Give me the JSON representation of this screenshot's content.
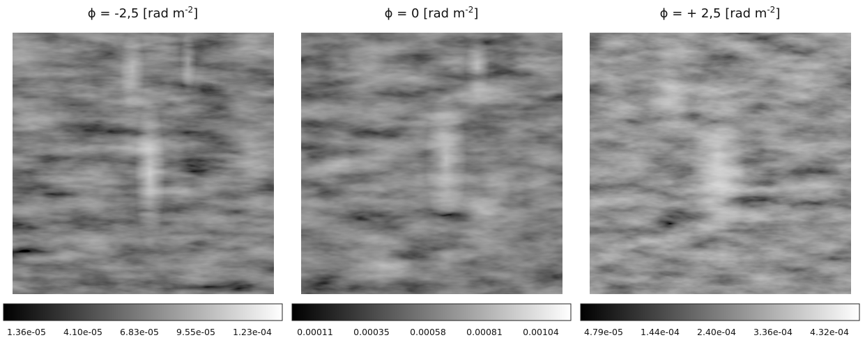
{
  "panels": [
    {
      "title": {
        "main": "ϕ = -2,5 [rad m",
        "sup": "-2",
        "close": "]"
      },
      "colorbar_ticks": [
        "1.36e-05",
        "4.10e-05",
        "6.83e-05",
        "9.55e-05",
        "1.23e-04"
      ]
    },
    {
      "title": {
        "main": "ϕ = 0 [rad m",
        "sup": "-2",
        "close": "]"
      },
      "colorbar_ticks": [
        "0.00011",
        "0.00035",
        "0.00058",
        "0.00081",
        "0.00104"
      ]
    },
    {
      "title": {
        "main": "ϕ = + 2,5 [rad m",
        "sup": "-2",
        "close": "]"
      },
      "colorbar_ticks": [
        "4.79e-05",
        "1.44e-04",
        "2.40e-04",
        "3.36e-04",
        "4.32e-04"
      ]
    }
  ]
}
